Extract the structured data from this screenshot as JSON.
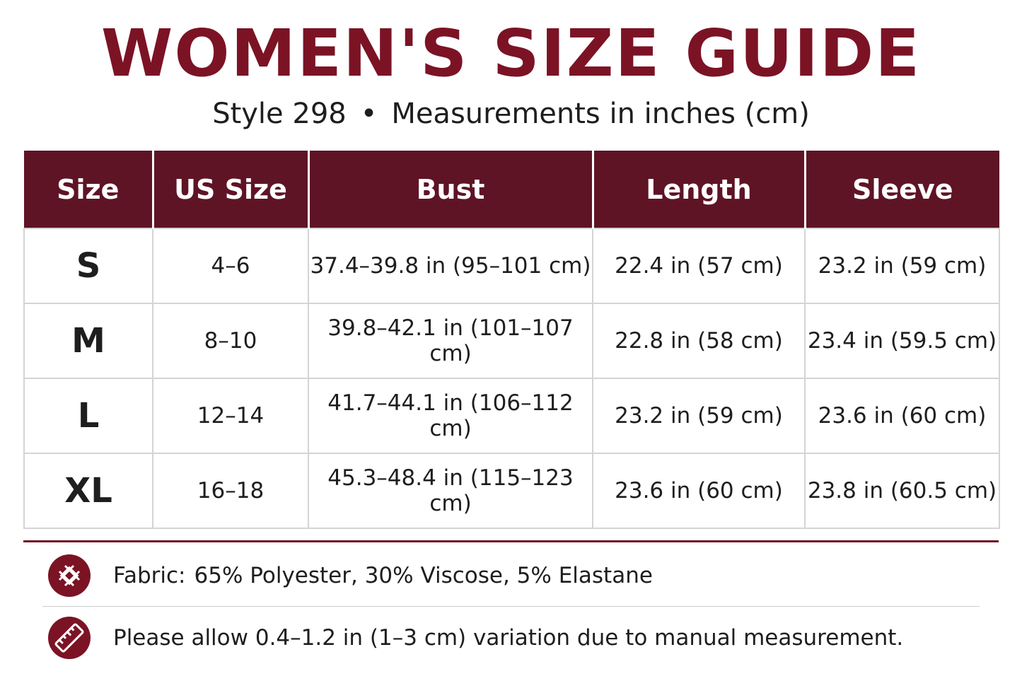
{
  "header": {
    "title": "WOMEN'S SIZE GUIDE",
    "subtitle": [
      "Style 298",
      "•",
      "Measurements in inches (cm)"
    ]
  },
  "table": {
    "columns": [
      "Size",
      "US Size",
      "Bust",
      "Length",
      "Sleeve"
    ],
    "rows": [
      [
        "S",
        "4–6",
        "37.4–39.8 in (95–101 cm)",
        "22.4 in (57 cm)",
        "23.2 in (59 cm)"
      ],
      [
        "M",
        "8–10",
        "39.8–42.1 in (101–107 cm)",
        "22.8 in (58 cm)",
        "23.4 in (59.5 cm)"
      ],
      [
        "L",
        "12–14",
        "41.7–44.1 in (106–112 cm)",
        "23.2 in (59 cm)",
        "23.6 in (60 cm)"
      ],
      [
        "XL",
        "16–18",
        "45.3–48.4 in (115–123 cm)",
        "23.6 in (60 cm)",
        "23.8 in (60.5 cm)"
      ]
    ]
  },
  "notes": [
    {
      "label": "Fabric:",
      "text": "65% Polyester, 30% Viscose, 5% Elastane"
    },
    {
      "text": "Please allow 0.4–1.2 in (1–3 cm) variation due to manual measurement."
    }
  ]
}
